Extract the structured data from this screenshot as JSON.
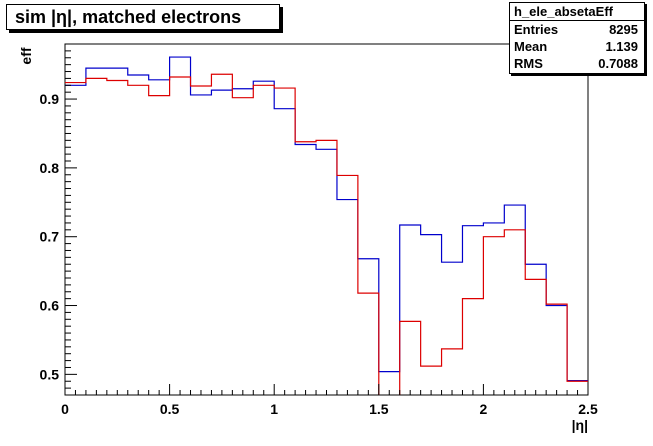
{
  "chart_data": {
    "type": "histogram",
    "title": "sim |η|, matched electrons",
    "xlabel": "|η|",
    "ylabel": "eff",
    "xlim": [
      0,
      2.5
    ],
    "ylim": [
      0.47,
      0.98
    ],
    "x_ticks": [
      "0",
      "0.5",
      "1",
      "1.5",
      "2",
      "2.5"
    ],
    "y_ticks": [
      "0.5",
      "0.6",
      "0.7",
      "0.8",
      "0.9"
    ],
    "grid": false,
    "bin_edges": [
      0,
      0.1,
      0.2,
      0.3,
      0.4,
      0.5,
      0.6,
      0.7,
      0.8,
      0.9,
      1.0,
      1.1,
      1.2,
      1.3,
      1.4,
      1.5,
      1.6,
      1.7,
      1.8,
      1.9,
      2.0,
      2.1,
      2.2,
      2.3,
      2.4,
      2.5
    ],
    "series": [
      {
        "color": "#0000cc",
        "values": [
          0.92,
          0.945,
          0.945,
          0.935,
          0.928,
          0.961,
          0.906,
          0.913,
          0.915,
          0.926,
          0.886,
          0.834,
          0.827,
          0.754,
          0.668,
          0.504,
          0.717,
          0.703,
          0.663,
          0.716,
          0.72,
          0.746,
          0.66,
          0.6,
          0.491
        ]
      },
      {
        "color": "#dd0000",
        "values": [
          0.924,
          0.93,
          0.927,
          0.92,
          0.905,
          0.932,
          0.919,
          0.936,
          0.902,
          0.92,
          0.916,
          0.838,
          0.84,
          0.789,
          0.618,
          0.43,
          0.577,
          0.512,
          0.537,
          0.61,
          0.7,
          0.71,
          0.638,
          0.602,
          0.49
        ]
      }
    ]
  },
  "stats": {
    "name": "h_ele_absetaEff",
    "rows": [
      {
        "label": "Entries",
        "value": "8295"
      },
      {
        "label": "Mean",
        "value": "1.139"
      },
      {
        "label": "RMS",
        "value": "0.7088"
      }
    ]
  }
}
